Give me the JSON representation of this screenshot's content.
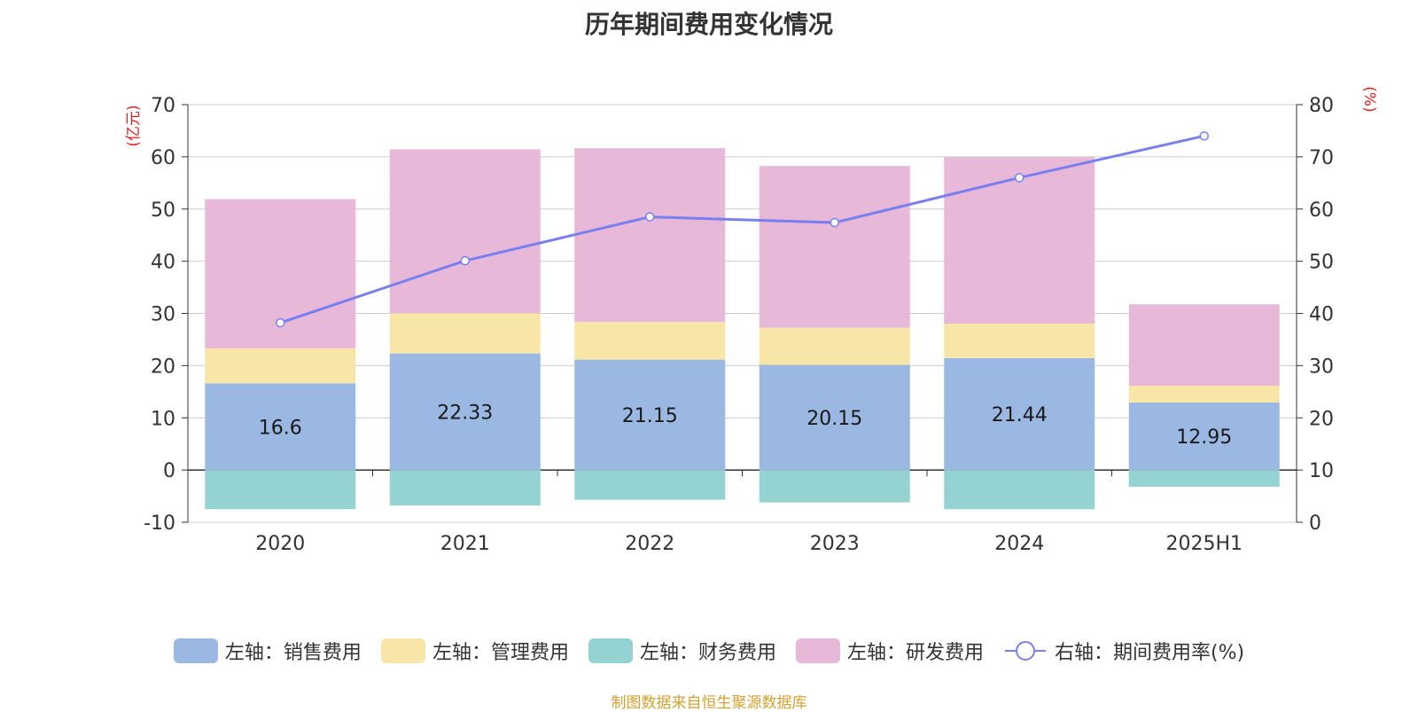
{
  "chart_data": {
    "type": "bar",
    "title": "历年期间费用变化情况",
    "categories": [
      "2020",
      "2021",
      "2022",
      "2023",
      "2024",
      "2025H1"
    ],
    "y_left": {
      "label": "(亿元)",
      "ylim": [
        -10,
        70
      ],
      "ticks": [
        -10,
        0,
        10,
        20,
        30,
        40,
        50,
        60,
        70
      ]
    },
    "y_right": {
      "label": "(%)",
      "ylim": [
        0,
        80
      ],
      "ticks": [
        0,
        10,
        20,
        30,
        40,
        50,
        60,
        70,
        80
      ]
    },
    "stacked": true,
    "grid": true,
    "legend_position": "bottom",
    "series": [
      {
        "name": "左轴：销售费用",
        "axis": "left",
        "type": "bar",
        "color": "#9bb8e2",
        "values": [
          16.6,
          22.33,
          21.15,
          20.15,
          21.44,
          12.95
        ],
        "show_labels": true,
        "labels": [
          "16.6",
          "22.33",
          "21.15",
          "20.15",
          "21.44",
          "12.95"
        ]
      },
      {
        "name": "左轴：管理费用",
        "axis": "left",
        "type": "bar",
        "color": "#f8e6a8",
        "values": [
          6.7,
          7.7,
          7.2,
          7.1,
          6.6,
          3.2
        ]
      },
      {
        "name": "左轴：财务费用",
        "axis": "left",
        "type": "bar",
        "color": "#95d3d3",
        "values": [
          -7.5,
          -6.8,
          -5.7,
          -6.2,
          -7.5,
          -3.2
        ]
      },
      {
        "name": "左轴：研发费用",
        "axis": "left",
        "type": "bar",
        "color": "#e7b8d8",
        "values": [
          28.6,
          31.4,
          33.3,
          31.0,
          31.9,
          15.6
        ]
      },
      {
        "name": "右轴：期间费用率(%)",
        "axis": "right",
        "type": "line",
        "color": "#7a7ff0",
        "values": [
          38.2,
          50.1,
          58.5,
          57.4,
          66.0,
          74.0
        ]
      }
    ]
  },
  "footer": {
    "source": "制图数据来自恒生聚源数据库"
  }
}
